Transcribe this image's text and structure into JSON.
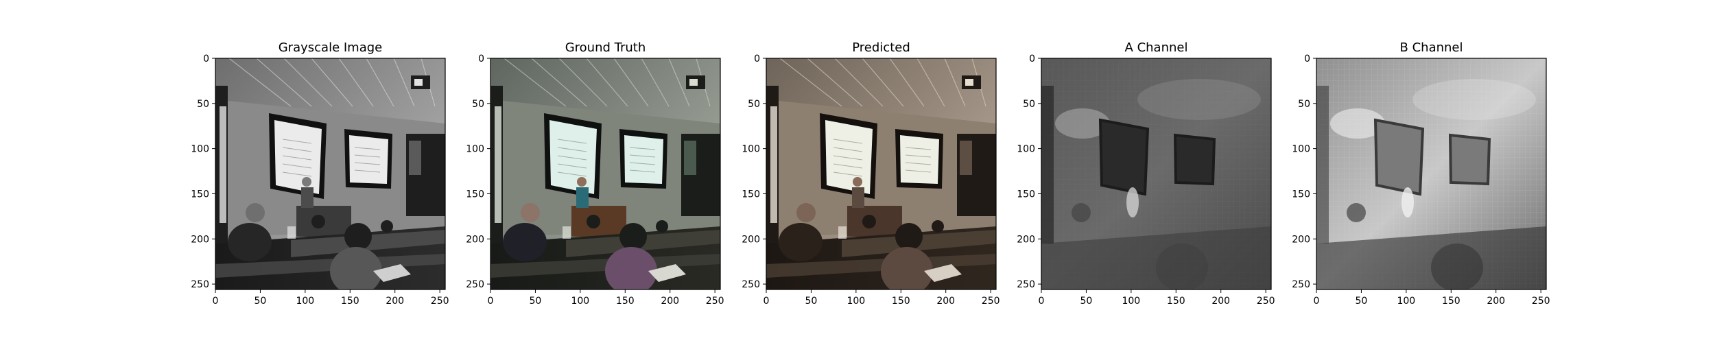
{
  "figure": {
    "panels": [
      {
        "id": "grayscale",
        "title": "Grayscale Image",
        "colormap": "grayscale photo"
      },
      {
        "id": "ground-truth",
        "title": "Ground Truth",
        "colormap": "color photo"
      },
      {
        "id": "predicted",
        "title": "Predicted",
        "colormap": "sepia-tinted color photo"
      },
      {
        "id": "a-channel",
        "title": "A Channel",
        "colormap": "gray channel map"
      },
      {
        "id": "b-channel",
        "title": "B Channel",
        "colormap": "gray channel map"
      }
    ],
    "x_ticks": [
      0,
      50,
      100,
      150,
      200,
      250
    ],
    "y_ticks": [
      0,
      50,
      100,
      150,
      200,
      250
    ],
    "axis_range": [
      0,
      256
    ],
    "colors": {
      "sky_wall_gray": "#9a9a9a",
      "screen_white": "#e8ece8",
      "ground_truth_screen": "#dfeee8",
      "predicted_tint": "#b89a80",
      "channel_dark": "#3a3a3a",
      "channel_light": "#b0b0b0"
    }
  }
}
